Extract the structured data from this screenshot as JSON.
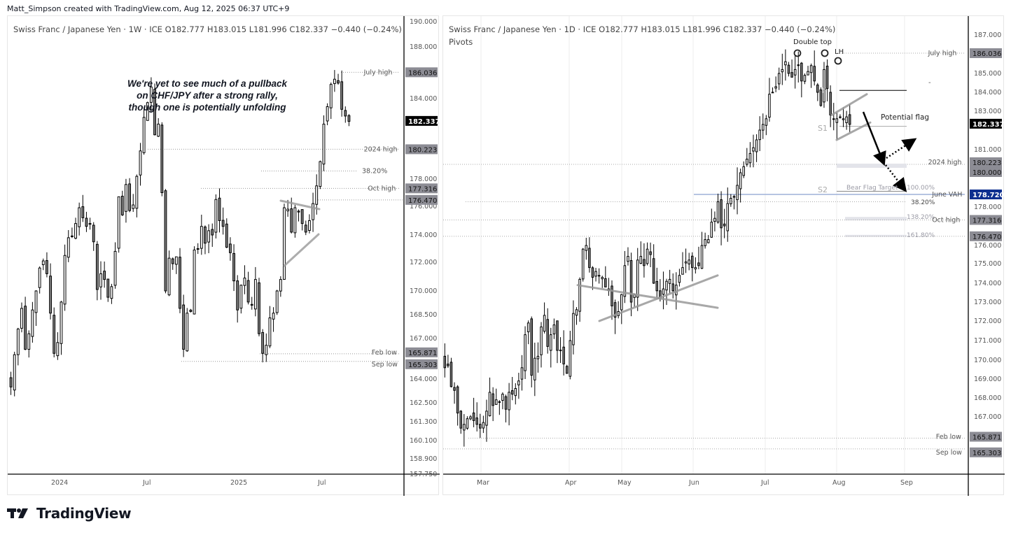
{
  "header": {
    "credit": "Matt_Simpson created with TradingView.com, Aug 12, 2025 06:37 UTC+9"
  },
  "footer": {
    "logo_text": "TradingView"
  },
  "left_chart": {
    "legend": "Swiss Franc / Japanese Yen · 1W · ICE  O182.777  H183.015  L181.996  C182.337  −0.440 (−0.24%)",
    "annotation_lines": [
      "We're yet to see much of a pullback",
      "on CHF/JPY after a strong rally,",
      "though one is potentially unfolding"
    ],
    "price_ticks": [
      "190.000",
      "188.000",
      "184.000",
      "178.000",
      "176.000",
      "174.000",
      "172.000",
      "170.000",
      "168.500",
      "167.000",
      "164.000",
      "162.500",
      "161.300",
      "160.100",
      "158.900",
      "157.750"
    ],
    "time_ticks": [
      "2024",
      "Jul",
      "2025",
      "Jul"
    ],
    "price_badges": [
      {
        "value": "186.036",
        "label": "July high",
        "style": "grey"
      },
      {
        "value": "182.337",
        "label": "",
        "style": "black"
      },
      {
        "value": "180.223",
        "label": "2024 high",
        "style": "grey"
      },
      {
        "value": "177.316",
        "label": "Oct high",
        "style": "grey"
      },
      {
        "value": "176.470",
        "label": "",
        "style": "grey"
      },
      {
        "value": "165.871",
        "label": "Feb low",
        "style": "grey"
      },
      {
        "value": "165.303",
        "label": "Sep low",
        "style": "grey"
      }
    ],
    "fib_label": "38.20%"
  },
  "right_chart": {
    "legend": "Swiss Franc / Japanese Yen · 1D · ICE  O182.777  H183.015  L181.996  C182.337  −0.440 (−0.24%)",
    "indicator": "Pivots",
    "price_ticks": [
      "187.000",
      "185.000",
      "184.000",
      "183.000",
      "181.000",
      "178.000",
      "176.000",
      "175.000",
      "174.000",
      "173.000",
      "172.000",
      "171.000",
      "170.000",
      "169.000",
      "168.000",
      "167.000"
    ],
    "time_ticks": [
      "Mar",
      "Apr",
      "May",
      "Jun",
      "Jul",
      "Aug",
      "Sep"
    ],
    "price_badges": [
      {
        "value": "186.036",
        "label": "July high",
        "style": "grey"
      },
      {
        "value": "182.337",
        "label": "",
        "style": "black"
      },
      {
        "value": "180.223",
        "label": "2024 high",
        "style": "grey"
      },
      {
        "value": "180.000",
        "label": "",
        "style": "grey"
      },
      {
        "value": "178.720",
        "label": "June VAH",
        "style": "blue"
      },
      {
        "value": "177.316",
        "label": "Oct high",
        "style": "grey"
      },
      {
        "value": "176.470",
        "label": "",
        "style": "grey"
      },
      {
        "value": "165.871",
        "label": "Feb low",
        "style": "grey"
      },
      {
        "value": "165.303",
        "label": "Sep low",
        "style": "grey"
      }
    ],
    "annotations": {
      "double_top": "Double top",
      "lower_high": "LH",
      "pivot_p": "P",
      "pivot_s1": "S1",
      "pivot_s2": "S2",
      "potential_flag": "Potential flag",
      "bear_flag_target": "Bear Flag Target",
      "fib_100": "100.00%",
      "fib_382": "38.20%",
      "fib_1382": "138.20%",
      "fib_1618": "161.80%"
    }
  },
  "colors": {
    "up_candle": "#ffffff",
    "down_candle": "#808080",
    "candle_border": "#000000",
    "badge_grey": "#8c8c94",
    "badge_black": "#000000",
    "badge_blue": "#0d2f8f",
    "vah_line": "#9db0d8"
  },
  "chart_data": [
    {
      "type": "candlestick",
      "title": "Swiss Franc / Japanese Yen · 1W · ICE",
      "timeframe": "1W",
      "ohlc_last": {
        "open": 182.777,
        "high": 183.015,
        "low": 181.996,
        "close": 182.337,
        "change": -0.44,
        "change_pct": -0.24
      },
      "xlabel": "",
      "ylabel": "",
      "ylim": [
        157.75,
        190.0
      ],
      "x_ticks": [
        "2024",
        "Jul",
        "2025",
        "Jul"
      ],
      "levels": [
        {
          "name": "July high",
          "value": 186.036
        },
        {
          "name": "2024 high",
          "value": 180.223
        },
        {
          "name": "38.20%",
          "value": 178.6
        },
        {
          "name": "Oct high",
          "value": 177.316
        },
        {
          "name": "176.470",
          "value": 176.47
        },
        {
          "name": "Feb low",
          "value": 165.871
        },
        {
          "name": "Sep low",
          "value": 165.303
        }
      ],
      "close_series": [
        163.5,
        165.8,
        167.6,
        168.9,
        166.2,
        167.3,
        168.8,
        170.0,
        171.6,
        172.1,
        171.2,
        168.6,
        165.9,
        166.7,
        169.3,
        172.5,
        173.8,
        173.9,
        174.8,
        175.9,
        175.2,
        174.6,
        174.8,
        173.5,
        170.1,
        171.2,
        170.8,
        169.6,
        170.3,
        172.8,
        176.7,
        175.4,
        177.6,
        175.7,
        176.1,
        178.2,
        180.1,
        182.6,
        183.7,
        184.9,
        181.3,
        182.1,
        177.0,
        170.0,
        172.3,
        171.9,
        172.4,
        168.9,
        166.2,
        168.6,
        168.7,
        172.9,
        173.0,
        174.6,
        173.4,
        174.3,
        174.0,
        176.5,
        175.0,
        174.6,
        173.1,
        172.7,
        170.7,
        168.8,
        170.4,
        170.9,
        169.3,
        169.1,
        170.8,
        167.3,
        165.9,
        166.5,
        168.3,
        168.6,
        170.0,
        170.8,
        175.9,
        175.8,
        174.2,
        175.9,
        175.6,
        174.8,
        174.2,
        175.0,
        176.2,
        177.5,
        179.3,
        182.1,
        183.4,
        185.1,
        185.5,
        185.2,
        183.2,
        182.7,
        182.3
      ]
    },
    {
      "type": "candlestick",
      "title": "Swiss Franc / Japanese Yen · 1D · ICE",
      "timeframe": "1D",
      "indicator": "Pivots",
      "ohlc_last": {
        "open": 182.777,
        "high": 183.015,
        "low": 181.996,
        "close": 182.337,
        "change": -0.44,
        "change_pct": -0.24
      },
      "ylim": [
        164.3,
        188.0
      ],
      "x_ticks": [
        "Mar",
        "Apr",
        "May",
        "Jun",
        "Jul",
        "Aug",
        "Sep"
      ],
      "levels": [
        {
          "name": "July high",
          "value": 186.036
        },
        {
          "name": "P",
          "value": 184.1
        },
        {
          "name": "S1",
          "value": 182.2
        },
        {
          "name": "2024 high",
          "value": 180.223
        },
        {
          "name": "Bear Flag Target 100.00%",
          "value": 178.9
        },
        {
          "name": "June VAH",
          "value": 178.72
        },
        {
          "name": "38.20%",
          "value": 178.3
        },
        {
          "name": "Oct high",
          "value": 177.316
        },
        {
          "name": "138.20%",
          "value": 177.4
        },
        {
          "name": "161.80%",
          "value": 176.5
        },
        {
          "name": "Feb low",
          "value": 165.871
        },
        {
          "name": "Sep low",
          "value": 165.303
        }
      ],
      "close_series": [
        169.6,
        169.7,
        168.6,
        168.4,
        167.2,
        166.4,
        166.6,
        166.9,
        167.0,
        166.8,
        166.6,
        166.4,
        166.7,
        167.3,
        168.3,
        167.6,
        167.9,
        167.8,
        168.2,
        167.4,
        168.3,
        168.2,
        168.5,
        168.9,
        169.6,
        171.3,
        171.9,
        169.2,
        170.1,
        170.2,
        171.7,
        172.3,
        170.7,
        171.3,
        171.8,
        170.5,
        170.5,
        169.8,
        169.3,
        171.0,
        172.4,
        172.6,
        174.2,
        175.8,
        176.0,
        174.8,
        174.3,
        174.6,
        174.4,
        174.3,
        173.8,
        173.7,
        172.8,
        172.2,
        172.5,
        173.4,
        174.9,
        175.4,
        173.0,
        173.4,
        175.2,
        175.4,
        174.9,
        175.8,
        175.5,
        174.0,
        173.6,
        173.2,
        173.7,
        174.1,
        174.2,
        173.6,
        173.9,
        174.4,
        174.8,
        175.1,
        175.2,
        174.8,
        174.8,
        174.9,
        176.0,
        176.3,
        176.3,
        177.2,
        177.4,
        178.3,
        176.9,
        177.0,
        178.2,
        178.5,
        178.6,
        179.2,
        179.8,
        180.1,
        180.5,
        180.8,
        181.1,
        181.5,
        182.0,
        182.3,
        182.6,
        183.9,
        184.0,
        184.3,
        185.0,
        185.2,
        185.6,
        185.0,
        184.8,
        185.2,
        185.4,
        184.6,
        184.9,
        185.1,
        185.4,
        184.6,
        184.0,
        183.3,
        185.2,
        184.2,
        182.8,
        182.6,
        182.6,
        182.7,
        182.6,
        182.7,
        182.3
      ]
    }
  ]
}
